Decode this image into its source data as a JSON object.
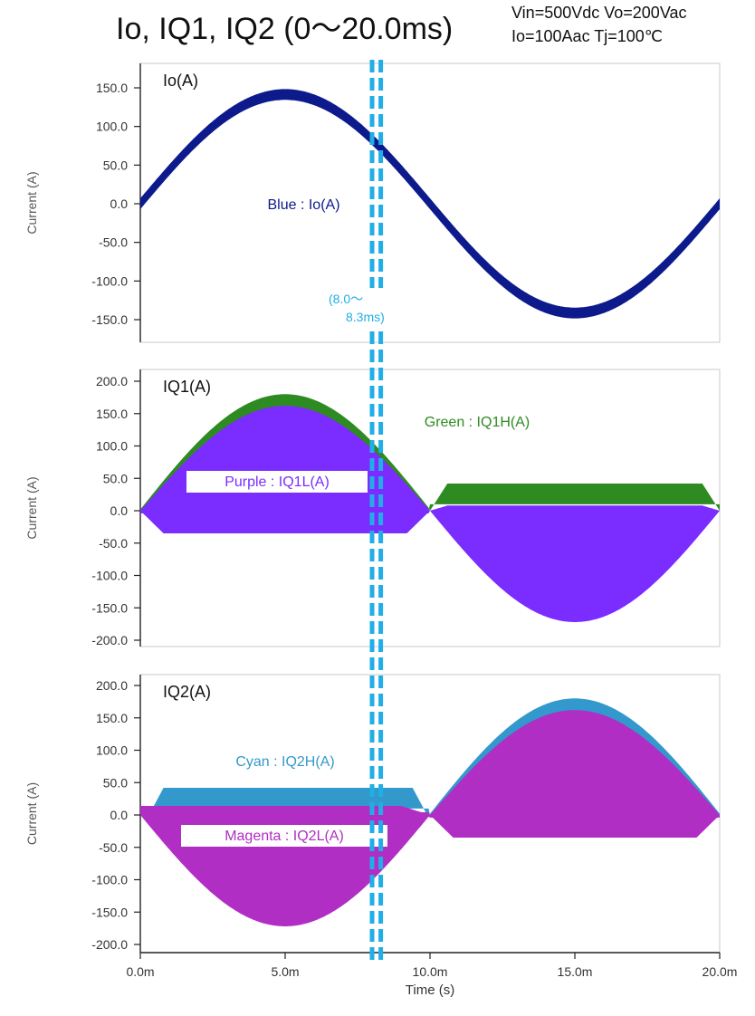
{
  "header": {
    "title": "Io, IQ1, IQ2 (0～20.0ms)",
    "conditions_line1": "Vin=500Vdc Vo=200Vac",
    "conditions_line2": "Io=100Aac Tj=100℃"
  },
  "colors": {
    "io": "#0d1a8c",
    "iq1h": "#2e8b22",
    "iq1l": "#7b2cff",
    "iq2h": "#3399cc",
    "iq2l": "#b02ec4",
    "marker": "#21aee6",
    "axis_text": "#555555"
  },
  "marker": {
    "label_line1": "(8.0～",
    "label_line2": "8.3ms)",
    "t_start_ms": 8.0,
    "t_end_ms": 8.3
  },
  "chart_data": {
    "type": "line",
    "title": "Io, IQ1, IQ2 (0～20.0ms)",
    "shared_x": {
      "label": "Time (s)",
      "ticks": [
        "0.0m",
        "5.0m",
        "10.0m",
        "15.0m",
        "20.0m"
      ],
      "range_ms": [
        0,
        20
      ]
    },
    "panels": [
      {
        "id": "io",
        "panel_label": "Io(A)",
        "ylabel": "Current (A)",
        "ylim": [
          -180,
          180
        ],
        "yticks": [
          "150.0",
          "100.0",
          "50.0",
          "0.0",
          "-50.0",
          "-100.0",
          "-150.0"
        ],
        "ytick_values": [
          150,
          100,
          50,
          0,
          -50,
          -100,
          -150
        ],
        "series": [
          {
            "name": "Blue : Io(A)",
            "color_key": "io",
            "kind": "sine",
            "amplitude": 141.4,
            "period_ms": 20
          }
        ]
      },
      {
        "id": "iq1",
        "panel_label": "IQ1(A)",
        "ylabel": "Current (A)",
        "ylim": [
          -210,
          210
        ],
        "yticks": [
          "200.0",
          "150.0",
          "100.0",
          "50.0",
          "0.0",
          "-50.0",
          "-100.0",
          "-150.0",
          "-200.0"
        ],
        "ytick_values": [
          200,
          150,
          100,
          50,
          0,
          -50,
          -100,
          -150,
          -200
        ],
        "series": [
          {
            "name": "Green : IQ1H(A)",
            "color_key": "iq1h",
            "envelope": {
              "first_half_peak": 178,
              "second_half_level": 42,
              "second_half_base": 10
            }
          },
          {
            "name": "Purple : IQ1L(A)",
            "color_key": "iq1l",
            "envelope": {
              "first_half_peak": 162,
              "first_half_floor": -35,
              "second_half_peak": -172
            }
          }
        ]
      },
      {
        "id": "iq2",
        "panel_label": "IQ2(A)",
        "ylabel": "Current (A)",
        "ylim": [
          -210,
          210
        ],
        "yticks": [
          "200.0",
          "150.0",
          "100.0",
          "50.0",
          "0.0",
          "-50.0",
          "-100.0",
          "-150.0",
          "-200.0"
        ],
        "ytick_values": [
          200,
          150,
          100,
          50,
          0,
          -50,
          -100,
          -150,
          -200
        ],
        "series": [
          {
            "name": "Cyan : IQ2H(A)",
            "color_key": "iq2h",
            "envelope": {
              "second_half_peak": 178,
              "first_half_level": 42,
              "first_half_base": 10
            }
          },
          {
            "name": "Magenta : IQ2L(A)",
            "color_key": "iq2l",
            "envelope": {
              "second_half_peak": 162,
              "second_half_floor": -35,
              "first_half_peak": -172
            }
          }
        ]
      }
    ]
  }
}
